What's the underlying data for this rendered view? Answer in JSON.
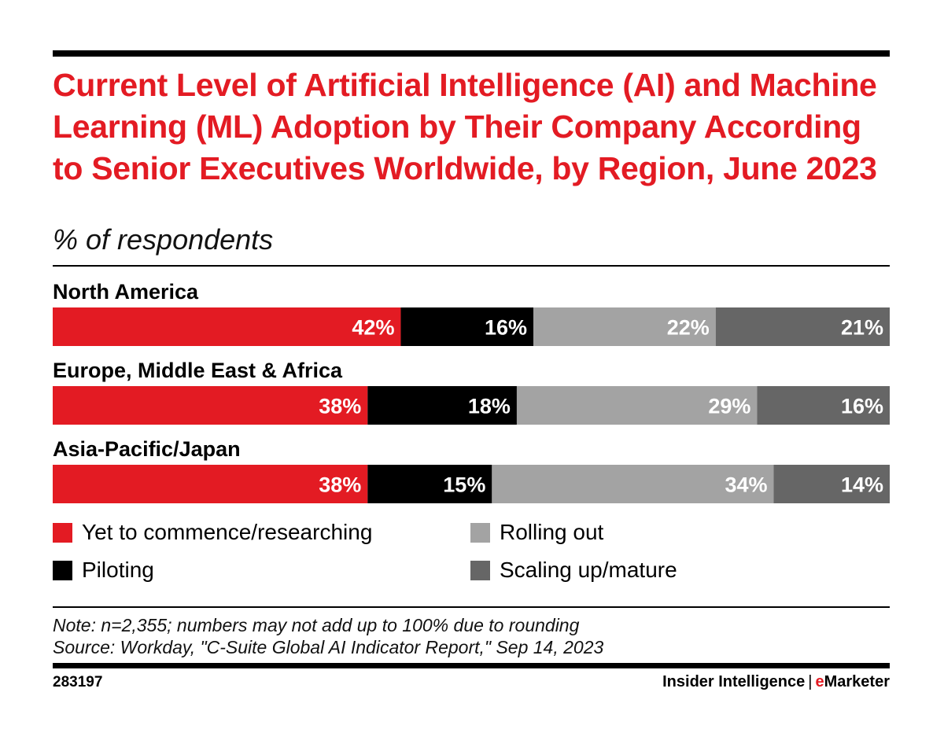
{
  "header": {
    "title": "Current Level of Artificial Intelligence (AI) and Machine Learning (ML) Adoption by Their Company According to Senior Executives Worldwide, by Region, June 2023",
    "subtitle": "% of respondents"
  },
  "chart_data": {
    "type": "bar",
    "orientation": "horizontal",
    "stacked": true,
    "categories": [
      "North America",
      "Europe, Middle East & Africa",
      "Asia-Pacific/Japan"
    ],
    "series": [
      {
        "name": "Yet to commence/researching",
        "color": "#e31b23",
        "label_color": "#ffffff",
        "values": [
          42,
          38,
          38
        ]
      },
      {
        "name": "Piloting",
        "color": "#000000",
        "label_color": "#ffffff",
        "values": [
          16,
          18,
          15
        ]
      },
      {
        "name": "Rolling out",
        "color": "#a3a3a3",
        "label_color": "#ffffff",
        "values": [
          22,
          29,
          34
        ]
      },
      {
        "name": "Scaling up/mature",
        "color": "#666666",
        "label_color": "#ffffff",
        "values": [
          21,
          16,
          14
        ]
      }
    ],
    "value_suffix": "%",
    "legend_position": "bottom",
    "grid": false
  },
  "notes": {
    "note": "Note: n=2,355; numbers may not add up to 100% due to rounding",
    "source": "Source: Workday, \"C-Suite Global AI Indicator Report,\" Sep 14, 2023"
  },
  "footer": {
    "chart_id": "283197",
    "brand_primary": "Insider Intelligence",
    "brand_separator": "|",
    "brand_e": "e",
    "brand_rest": "Marketer"
  }
}
